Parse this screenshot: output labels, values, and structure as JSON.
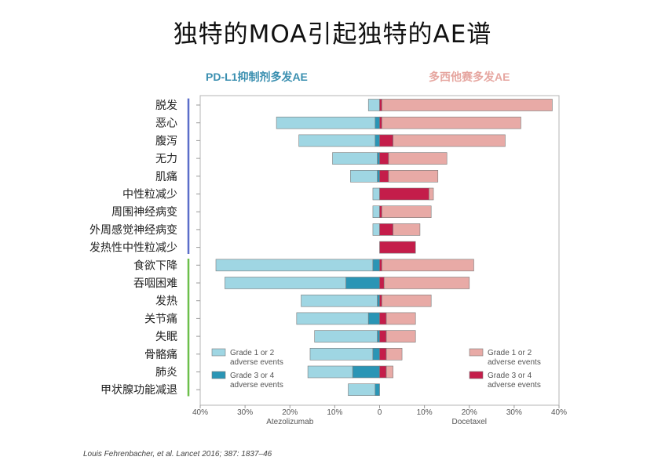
{
  "title": "独特的MOA引起独特的AE谱",
  "left_header": "PD-L1抑制剂多发AE",
  "right_header": "多西他赛多发AE",
  "citation": "Louis Fehrenbacher, et al. Lancet 2016; 387: 1837–46",
  "chart_data": {
    "type": "bar",
    "orientation": "horizontal-butterfly",
    "categories": [
      "脱发",
      "恶心",
      "腹泻",
      "无力",
      "肌痛",
      "中性粒减少",
      "周围神经病变",
      "外周感觉神经病变",
      "发热性中性粒减少",
      "食欲下降",
      "吞咽困难",
      "发热",
      "关节痛",
      "失眠",
      "骨骼痛",
      "肺炎",
      "甲状腺功能减退"
    ],
    "groups": [
      {
        "indices": [
          0,
          1,
          2,
          3,
          4,
          5,
          6,
          7,
          8
        ],
        "color": "#5b6ec9"
      },
      {
        "indices": [
          9,
          10,
          11,
          12,
          13,
          14,
          15,
          16
        ],
        "color": "#6cbf4a"
      }
    ],
    "xlim": [
      -40,
      40
    ],
    "xticks": [
      "40%",
      "30%",
      "20%",
      "10%",
      "0",
      "10%",
      "20%",
      "30%",
      "40%"
    ],
    "left_axis_label": "Atezolizumab",
    "right_axis_label": "Docetaxel",
    "series": [
      {
        "name": "Grade 1 or 2 adverse events",
        "drug": "Atezolizumab",
        "color": "#9fd6e3",
        "values": [
          2.5,
          22,
          17,
          10,
          6,
          1.5,
          1.5,
          1.5,
          0,
          35,
          27,
          17,
          16,
          14,
          14,
          10,
          6
        ]
      },
      {
        "name": "Grade 3 or 4 adverse events",
        "drug": "Atezolizumab",
        "color": "#2a95b5",
        "values": [
          0,
          1,
          1,
          0.5,
          0.5,
          0,
          0,
          0,
          0,
          1.5,
          7.5,
          0.5,
          2.5,
          0.5,
          1.5,
          6,
          1
        ]
      },
      {
        "name": "Grade 1 or 2 adverse events",
        "drug": "Docetaxel",
        "color": "#e8aaa6",
        "values": [
          38,
          31,
          25,
          13,
          11,
          1,
          11,
          6,
          0,
          20.5,
          19,
          11,
          6.5,
          6.5,
          3.5,
          1.5,
          0
        ]
      },
      {
        "name": "Grade 3 or 4 adverse events",
        "drug": "Docetaxel",
        "color": "#c41d4a",
        "values": [
          0.5,
          0.5,
          3,
          2,
          2,
          11,
          0.5,
          3,
          8,
          0.5,
          1,
          0.5,
          1.5,
          1.5,
          1.5,
          1.5,
          0
        ]
      }
    ],
    "legend": [
      {
        "label_line1": "Grade 1 or 2",
        "label_line2": "adverse events",
        "color": "#9fd6e3",
        "position": "bottom-left"
      },
      {
        "label_line1": "Grade 3 or 4",
        "label_line2": "adverse events",
        "color": "#2a95b5",
        "position": "bottom-left"
      },
      {
        "label_line1": "Grade 1 or 2",
        "label_line2": "adverse events",
        "color": "#e8aaa6",
        "position": "bottom-right"
      },
      {
        "label_line1": "Grade 3 or 4",
        "label_line2": "adverse events",
        "color": "#c41d4a",
        "position": "bottom-right"
      }
    ]
  }
}
